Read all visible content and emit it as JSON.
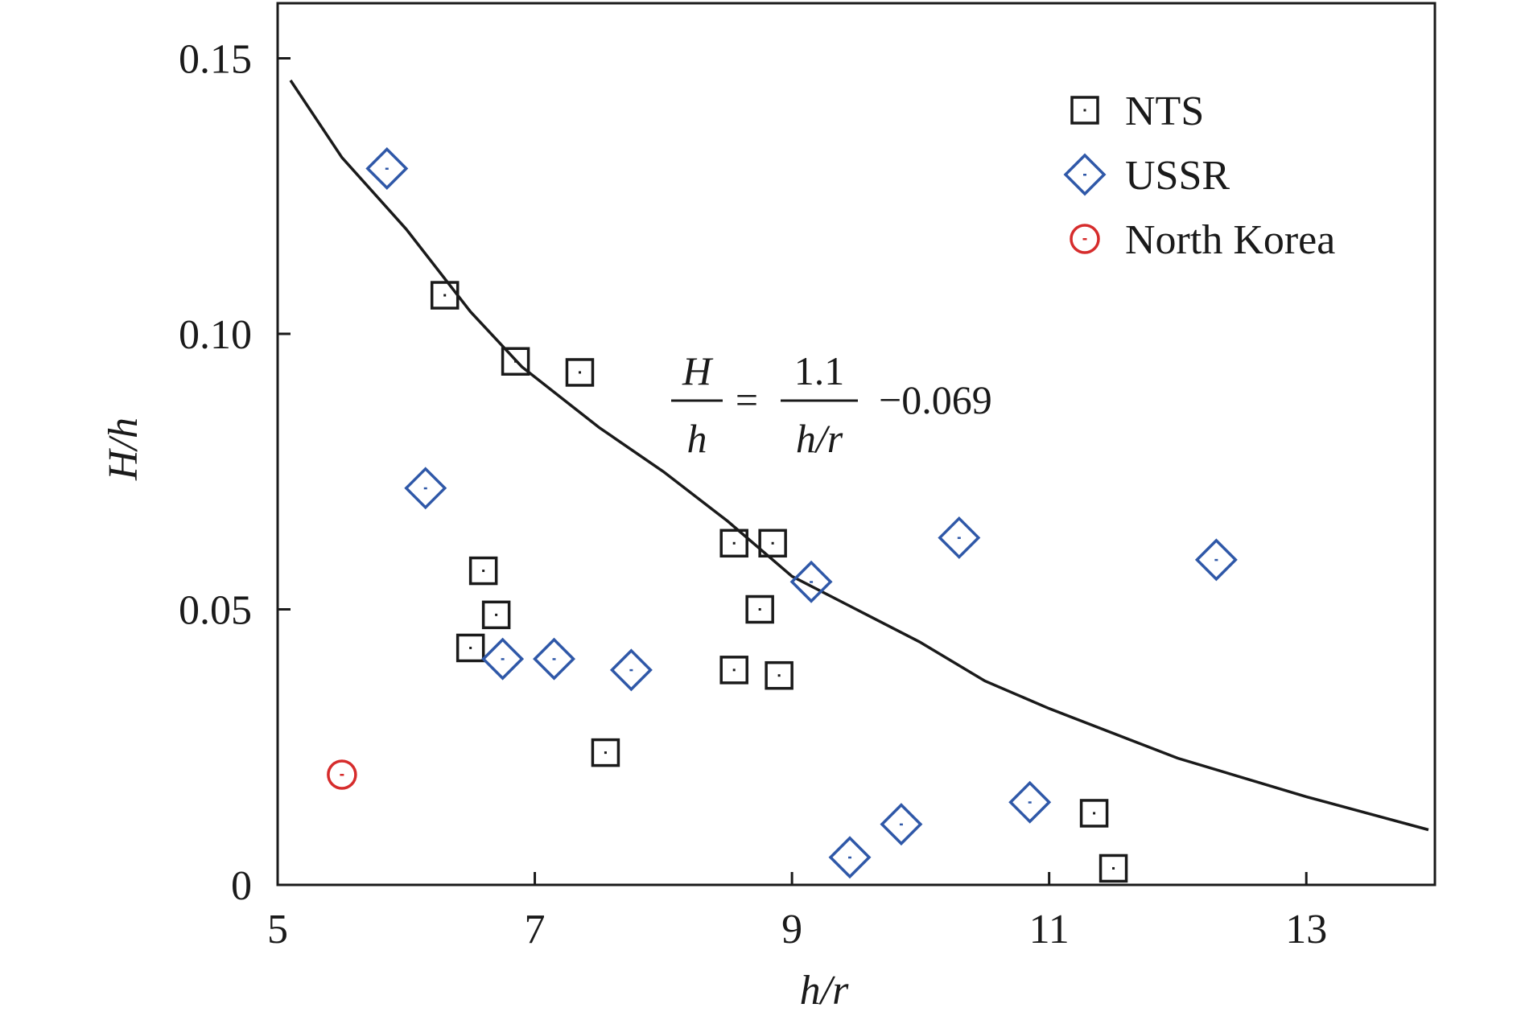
{
  "chart_data": {
    "type": "scatter",
    "xlabel": "h/r",
    "ylabel": "H/h",
    "xlim": [
      5,
      14
    ],
    "ylim": [
      0,
      0.16
    ],
    "xticks": [
      "5",
      "7",
      "9",
      "11",
      "13"
    ],
    "yticks": [
      "0",
      "0.05",
      "0.10",
      "0.15"
    ],
    "grid": false,
    "legend_position": "top-right",
    "series": [
      {
        "name": "NTS",
        "marker": "square",
        "color": "#1a1a1a",
        "points": [
          [
            6.3,
            0.107
          ],
          [
            6.85,
            0.095
          ],
          [
            7.35,
            0.093
          ],
          [
            6.6,
            0.057
          ],
          [
            6.7,
            0.049
          ],
          [
            6.5,
            0.043
          ],
          [
            8.55,
            0.062
          ],
          [
            8.85,
            0.062
          ],
          [
            8.75,
            0.05
          ],
          [
            8.55,
            0.039
          ],
          [
            8.9,
            0.038
          ],
          [
            7.55,
            0.024
          ],
          [
            11.35,
            0.013
          ],
          [
            11.5,
            0.003
          ]
        ]
      },
      {
        "name": "USSR",
        "marker": "diamond",
        "color": "#2f58a8",
        "points": [
          [
            5.85,
            0.13
          ],
          [
            6.15,
            0.072
          ],
          [
            6.75,
            0.041
          ],
          [
            7.15,
            0.041
          ],
          [
            7.75,
            0.039
          ],
          [
            9.15,
            0.055
          ],
          [
            10.3,
            0.063
          ],
          [
            12.3,
            0.059
          ],
          [
            10.85,
            0.015
          ],
          [
            9.85,
            0.011
          ],
          [
            9.45,
            0.005
          ]
        ]
      },
      {
        "name": "North Korea",
        "marker": "circle",
        "color": "#d62c2c",
        "points": [
          [
            5.5,
            0.02
          ]
        ]
      }
    ],
    "fit_curve": {
      "description": "H/h = 1.1/(h/r) - 0.069",
      "points": [
        [
          5.1,
          0.146
        ],
        [
          5.5,
          0.132
        ],
        [
          6.0,
          0.119
        ],
        [
          6.5,
          0.104
        ],
        [
          6.9,
          0.094
        ],
        [
          7.5,
          0.083
        ],
        [
          8.0,
          0.075
        ],
        [
          8.5,
          0.066
        ],
        [
          9.0,
          0.056
        ],
        [
          9.5,
          0.05
        ],
        [
          10.0,
          0.044
        ],
        [
          10.5,
          0.037
        ],
        [
          11.0,
          0.032
        ],
        [
          12.0,
          0.023
        ],
        [
          13.0,
          0.016
        ],
        [
          13.95,
          0.01
        ]
      ]
    },
    "equation": {
      "lhs_num": "H",
      "lhs_den": "h",
      "equals": "=",
      "rhs_num": "1.1",
      "rhs_den": "h/r",
      "constant": "−0.069"
    }
  }
}
